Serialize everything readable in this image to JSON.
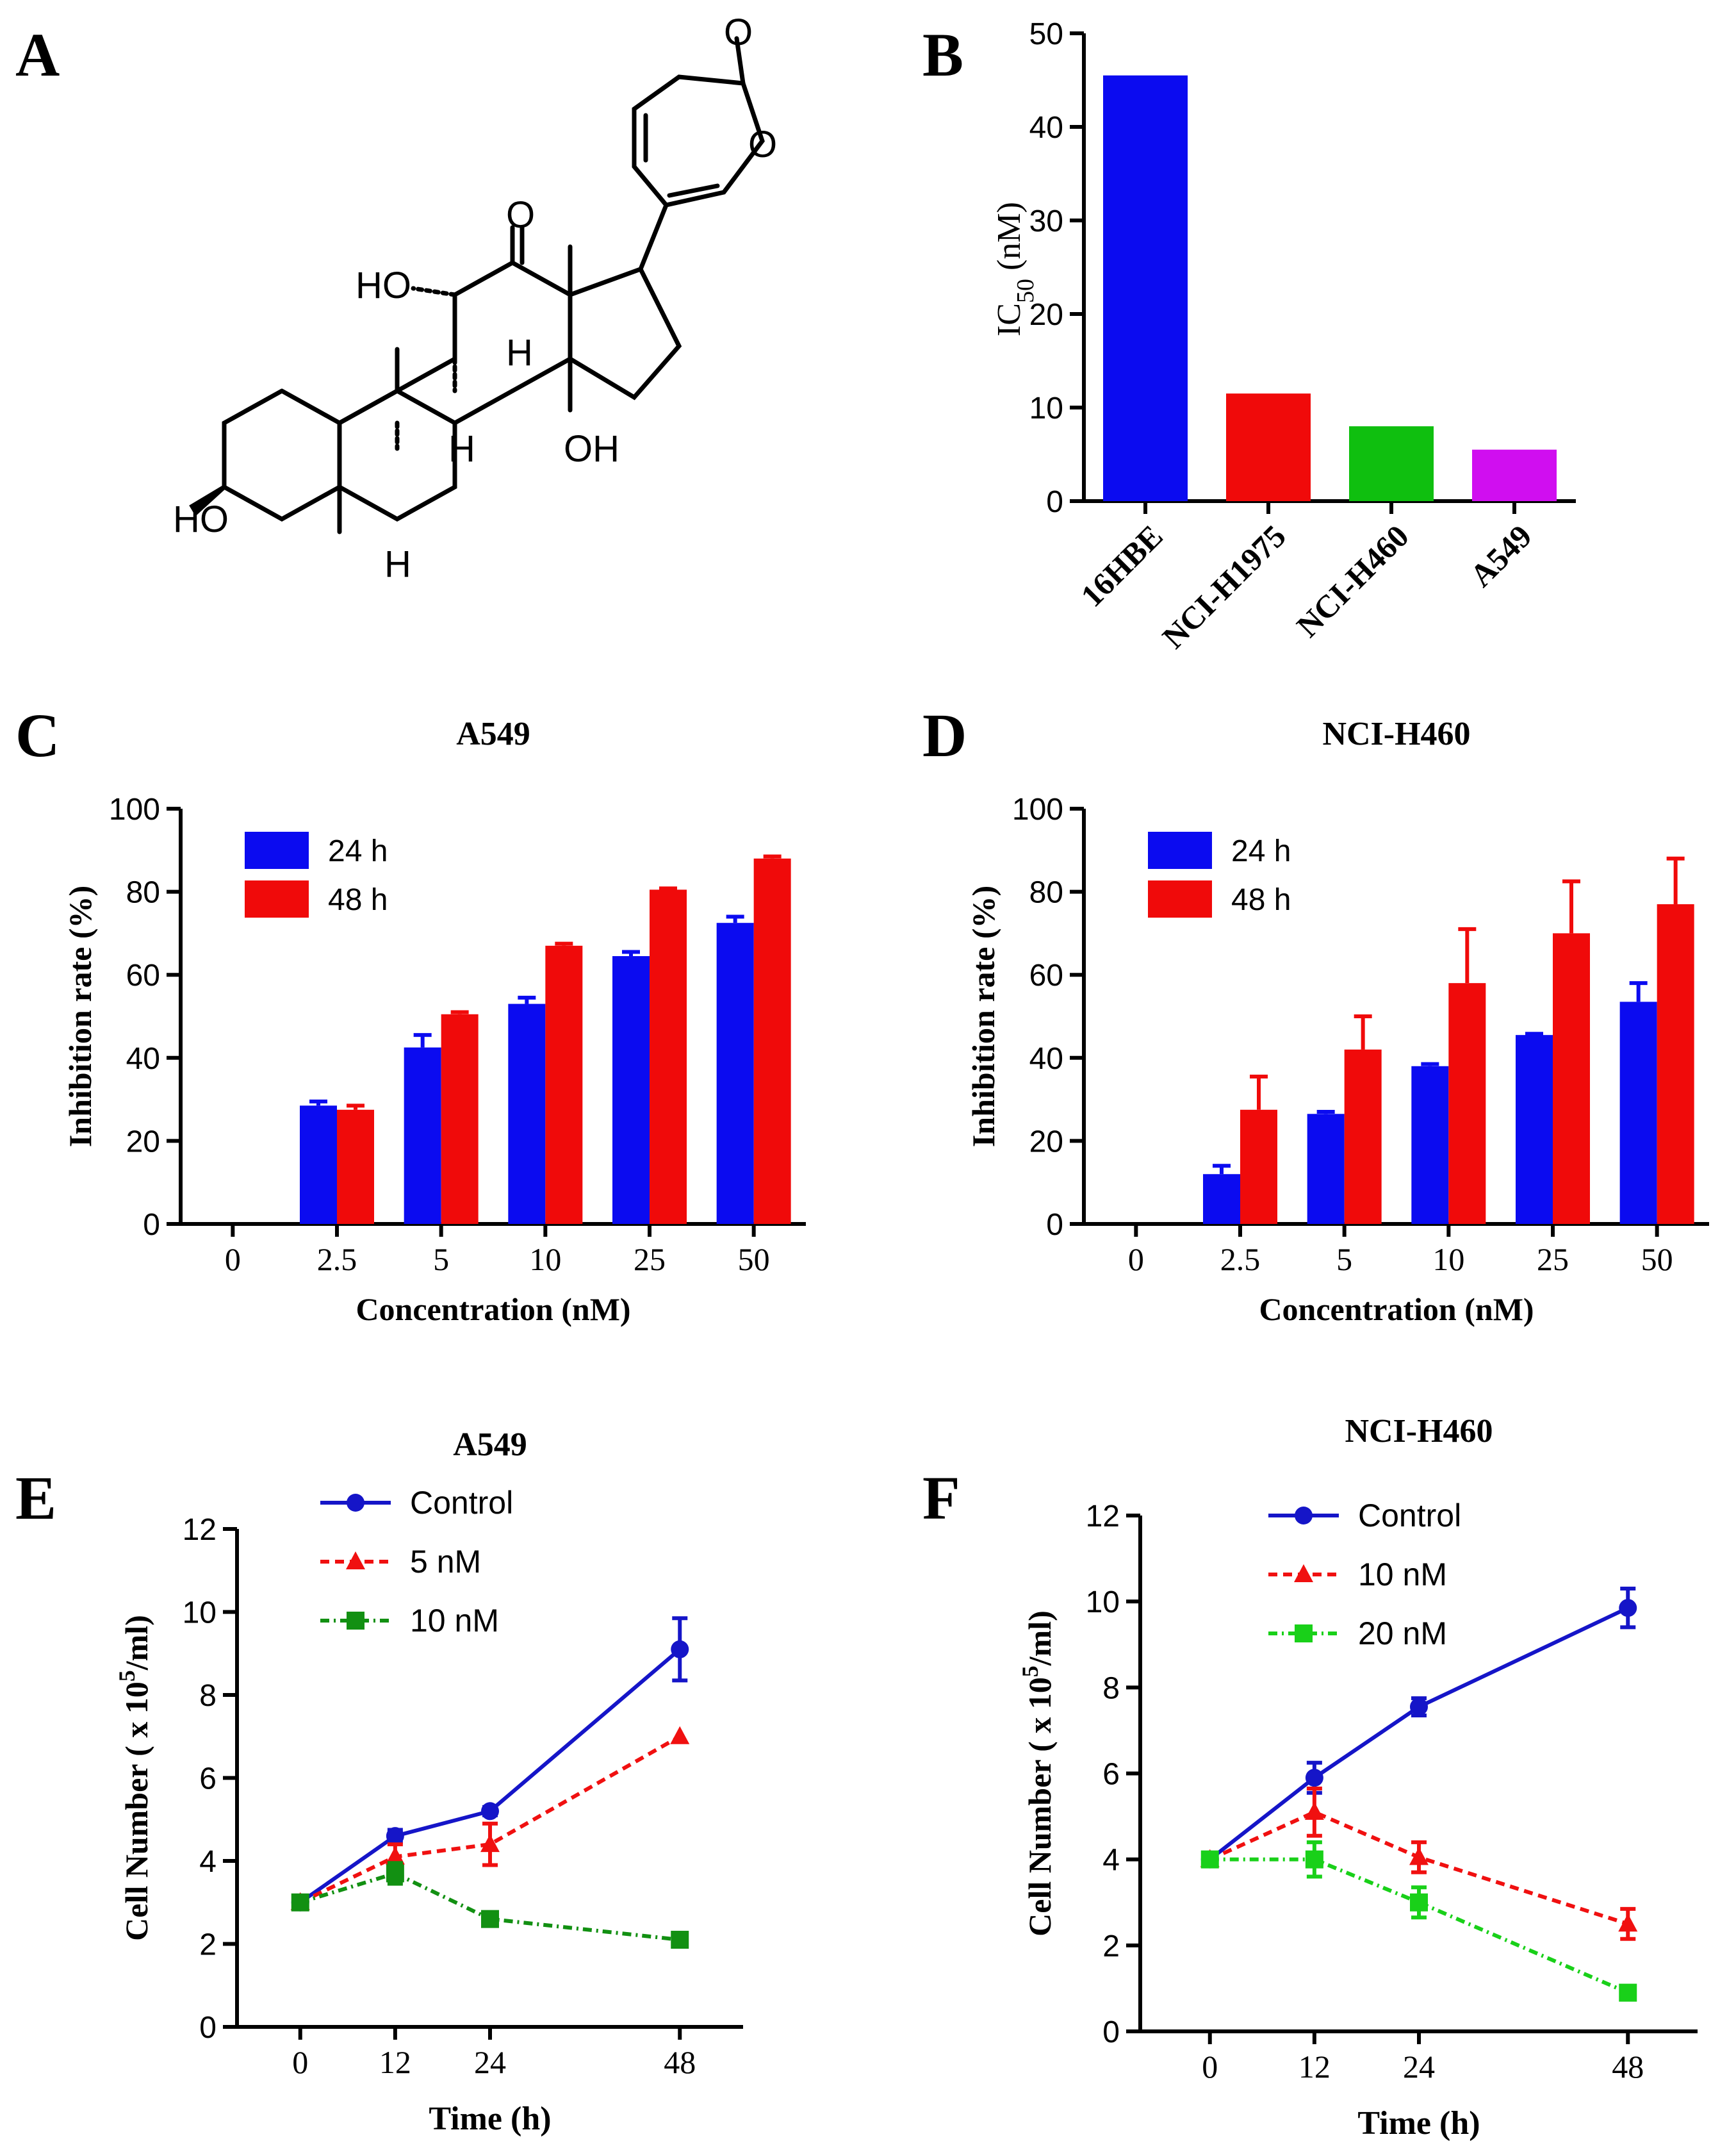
{
  "panel_labels": [
    "A",
    "B",
    "C",
    "D",
    "E",
    "F"
  ],
  "molecule": {
    "atom_labels": [
      "O",
      "O",
      "O",
      "HO",
      "H",
      "H",
      "OH",
      "HO",
      "H"
    ]
  },
  "chart_data": [
    {
      "panel": "B",
      "type": "bar",
      "title": "",
      "ylabel_main": "IC",
      "ylabel_sub": "50",
      "ylabel_tail": " (nM)",
      "categories": [
        "16HBE",
        "NCI-H1975",
        "NCI-H460",
        "A549"
      ],
      "values": [
        45.5,
        11.5,
        8,
        5.5
      ],
      "colors": [
        "#0b0bf0",
        "#f00a0a",
        "#0fbf0f",
        "#d00ef0"
      ],
      "ylim": [
        0,
        50
      ],
      "yticks": [
        0,
        10,
        20,
        30,
        40,
        50
      ]
    },
    {
      "panel": "C",
      "type": "bar",
      "title": "A549",
      "xlabel": "Concentration (nM)",
      "ylabel": "Inhibition rate (%)",
      "categories": [
        "0",
        "2.5",
        "5",
        "10",
        "25",
        "50"
      ],
      "series": [
        {
          "name": "24 h",
          "color": "#0b0bf0",
          "values": [
            0,
            28.5,
            42.5,
            53,
            64.5,
            72.5
          ],
          "errors": [
            0,
            1,
            3,
            1.5,
            1,
            1.5
          ]
        },
        {
          "name": "48 h",
          "color": "#f00a0a",
          "values": [
            0,
            27.5,
            50.5,
            67,
            80.5,
            88
          ],
          "errors": [
            0,
            1,
            0.5,
            0.5,
            0.3,
            0.5
          ]
        }
      ],
      "ylim": [
        0,
        100
      ],
      "yticks": [
        0,
        20,
        40,
        60,
        80,
        100
      ]
    },
    {
      "panel": "D",
      "type": "bar",
      "title": "NCI-H460",
      "xlabel": "Concentration (nM)",
      "ylabel": "Inhibition rate (%)",
      "categories": [
        "0",
        "2.5",
        "5",
        "10",
        "25",
        "50"
      ],
      "series": [
        {
          "name": "24 h",
          "color": "#0b0bf0",
          "values": [
            0,
            12,
            26.5,
            38,
            45.5,
            53.5
          ],
          "errors": [
            0,
            2,
            0.5,
            0.5,
            0.3,
            4.5
          ]
        },
        {
          "name": "48 h",
          "color": "#f00a0a",
          "values": [
            0,
            27.5,
            42,
            58,
            70,
            77
          ],
          "errors": [
            0,
            8,
            8,
            13,
            12.5,
            11
          ]
        }
      ],
      "ylim": [
        0,
        100
      ],
      "yticks": [
        0,
        20,
        40,
        60,
        80,
        100
      ]
    },
    {
      "panel": "E",
      "type": "line",
      "title": "A549",
      "xlabel": "Time (h)",
      "ylabel_pre": "Cell Number ( x 10",
      "ylabel_sup": "5",
      "ylabel_post": "/ml)",
      "x": [
        "0",
        "12",
        "24",
        "48"
      ],
      "series": [
        {
          "name": "Control",
          "color": "#1515c8",
          "dash": "none",
          "marker": "circle",
          "values": [
            3,
            4.6,
            5.2,
            9.1
          ],
          "errors": [
            0,
            0.15,
            0.1,
            0.75
          ]
        },
        {
          "name": "5 nM",
          "color": "#f01010",
          "dash": "14,9",
          "marker": "triangle",
          "values": [
            3,
            4.1,
            4.4,
            7
          ],
          "errors": [
            0,
            0.3,
            0.5,
            0
          ]
        },
        {
          "name": "10 nM",
          "color": "#129012",
          "dash": "14,7,3,7",
          "marker": "square",
          "values": [
            3,
            3.7,
            2.6,
            2.1
          ],
          "errors": [
            0,
            0.25,
            0.1,
            0
          ]
        }
      ],
      "ylim": [
        0,
        12
      ],
      "yticks": [
        0,
        2,
        4,
        6,
        8,
        10,
        12
      ]
    },
    {
      "panel": "F",
      "type": "line",
      "title": "NCI-H460",
      "xlabel": "Time (h)",
      "ylabel_pre": "Cell Number ( x 10",
      "ylabel_sup": "5",
      "ylabel_post": "/ml)",
      "x": [
        "0",
        "12",
        "24",
        "48"
      ],
      "series": [
        {
          "name": "Control",
          "color": "#1515c8",
          "dash": "none",
          "marker": "circle",
          "values": [
            4,
            5.9,
            7.55,
            9.85
          ],
          "errors": [
            0,
            0.35,
            0.2,
            0.45
          ]
        },
        {
          "name": "10 nM",
          "color": "#f01010",
          "dash": "14,9",
          "marker": "triangle",
          "values": [
            4,
            5.1,
            4.05,
            2.5
          ],
          "errors": [
            0,
            0.55,
            0.35,
            0.35
          ]
        },
        {
          "name": "20 nM",
          "color": "#19d019",
          "dash": "14,7,3,7",
          "marker": "square",
          "values": [
            4,
            4.0,
            3.0,
            0.9
          ],
          "errors": [
            0,
            0.4,
            0.35,
            0
          ]
        }
      ],
      "ylim": [
        0,
        12
      ],
      "yticks": [
        0,
        2,
        4,
        6,
        8,
        10,
        12
      ]
    }
  ]
}
